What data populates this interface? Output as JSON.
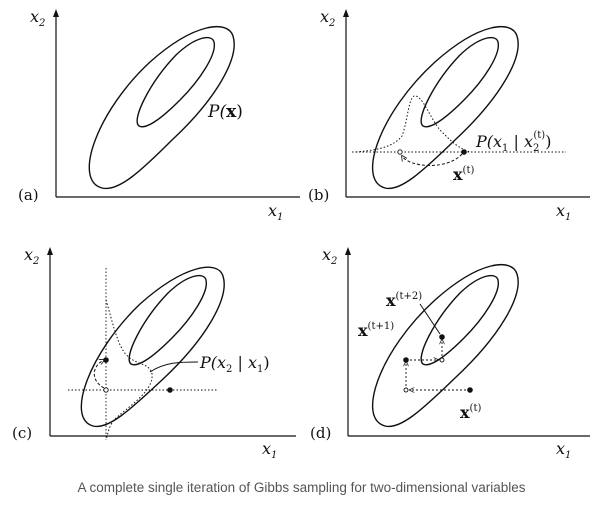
{
  "panels": {
    "a": {
      "tag": "(a)",
      "x_axis": {
        "base": "x",
        "sub": "1"
      },
      "y_axis": {
        "base": "x",
        "sub": "2"
      },
      "label": {
        "pre": "P(",
        "var": "x",
        "post": ")"
      }
    },
    "b": {
      "tag": "(b)",
      "x_axis": {
        "base": "x",
        "sub": "1"
      },
      "y_axis": {
        "base": "x",
        "sub": "2"
      },
      "cond_label": {
        "pre": "P(",
        "v1": "x",
        "s1": "1",
        "bar": " | ",
        "v2": "x",
        "s2": "2",
        "sup2": "(t)",
        "post": ")"
      },
      "point_label": {
        "base": "x",
        "sup": "(t)"
      }
    },
    "c": {
      "tag": "(c)",
      "x_axis": {
        "base": "x",
        "sub": "1"
      },
      "y_axis": {
        "base": "x",
        "sub": "2"
      },
      "cond_label": {
        "pre": "P(",
        "v1": "x",
        "s1": "2",
        "bar": " | ",
        "v2": "x",
        "s2": "1",
        "post": ")"
      }
    },
    "d": {
      "tag": "(d)",
      "x_axis": {
        "base": "x",
        "sub": "1"
      },
      "y_axis": {
        "base": "x",
        "sub": "2"
      },
      "label_t": {
        "base": "x",
        "sup": "(t)"
      },
      "label_t1": {
        "base": "x",
        "sup": "(t+1)"
      },
      "label_t2": {
        "base": "x",
        "sup": "(t+2)"
      }
    }
  },
  "caption": "A complete single iteration of Gibbs sampling for two-dimensional variables"
}
